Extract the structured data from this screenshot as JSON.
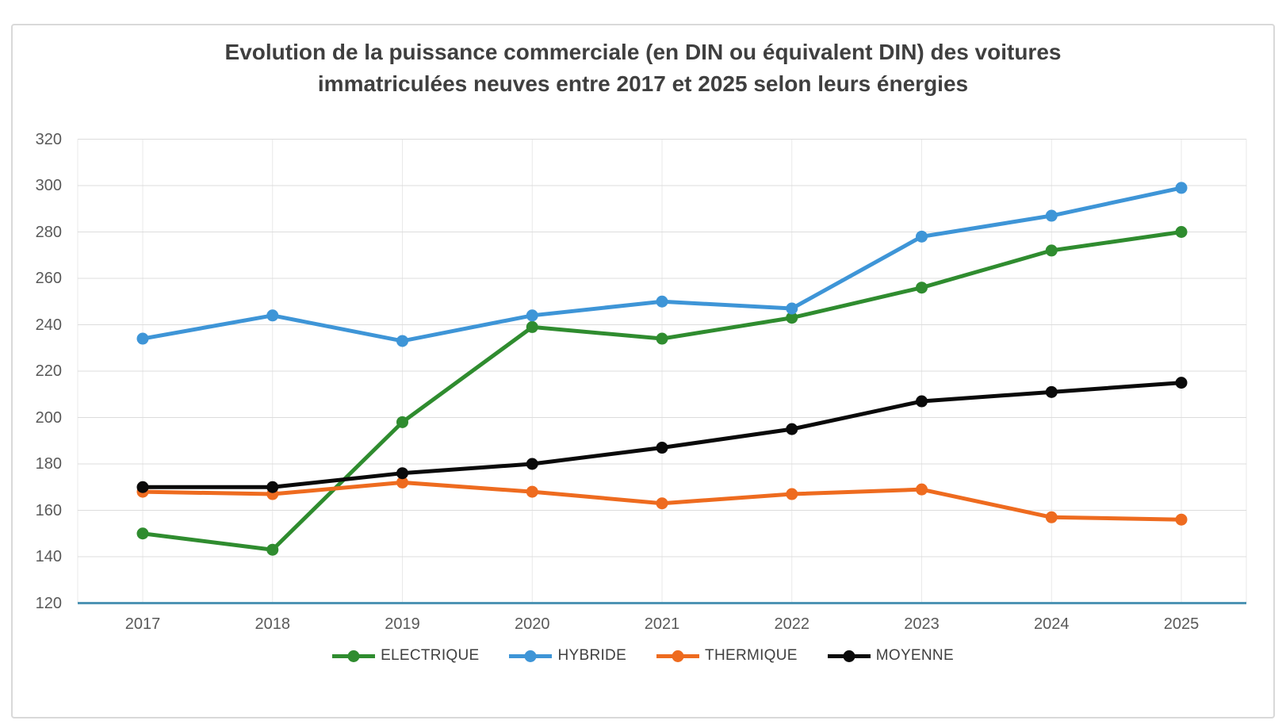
{
  "chart": {
    "title": "Evolution de la puissance commerciale (en DIN ou équivalent DIN) des voitures\nimmatriculées neuves entre 2017 et 2025 selon leurs énergies"
  },
  "chart_data": {
    "type": "line",
    "x": [
      "2017",
      "2018",
      "2019",
      "2020",
      "2021",
      "2022",
      "2023",
      "2024",
      "2025"
    ],
    "series": [
      {
        "name": "ELECTRIQUE",
        "color": "#2f8c2f",
        "values": [
          150,
          143,
          198,
          239,
          234,
          243,
          256,
          272,
          280
        ]
      },
      {
        "name": "HYBRIDE",
        "color": "#3e95d7",
        "values": [
          234,
          244,
          233,
          244,
          250,
          247,
          278,
          287,
          299
        ]
      },
      {
        "name": "THERMIQUE",
        "color": "#ee6b1f",
        "values": [
          168,
          167,
          172,
          168,
          163,
          167,
          169,
          157,
          156
        ]
      },
      {
        "name": "MOYENNE",
        "color": "#0a0a0a",
        "values": [
          170,
          170,
          176,
          180,
          187,
          195,
          207,
          211,
          215
        ]
      }
    ],
    "ylim": [
      120,
      320
    ],
    "y_ticks": [
      320,
      300,
      280,
      260,
      240,
      220,
      200,
      180,
      160,
      140,
      120
    ],
    "grid": true,
    "legend_position": "bottom",
    "marker": "circle",
    "colors": {
      "axis_line": "#4e94b4",
      "hgrid": "#dcdcdc",
      "vgrid": "#e9e9e9",
      "tick_label": "#595959",
      "title": "#3f3f3f",
      "legend_label": "#404040",
      "frame_border": "#d9d9d9",
      "background": "#ffffff"
    }
  }
}
